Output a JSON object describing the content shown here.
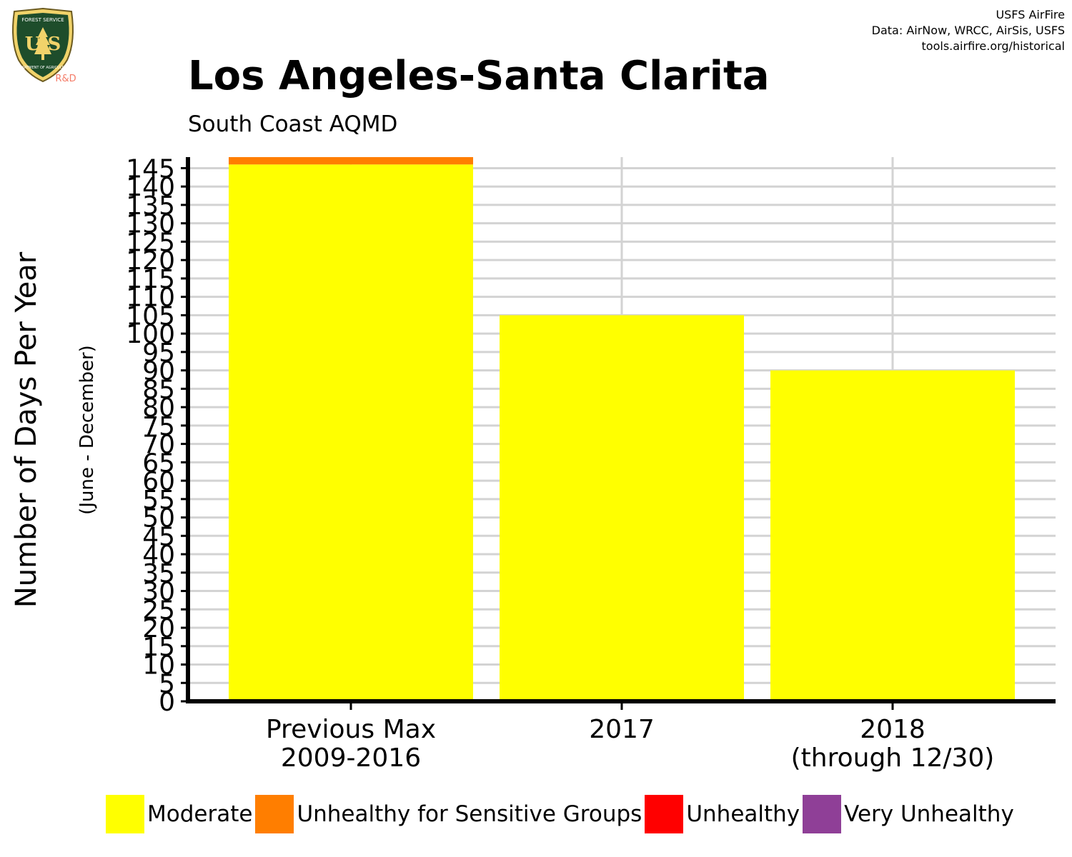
{
  "logo": {
    "top_text": "FOREST SERVICE",
    "letters": "U S",
    "bottom_text": "DEPARTMENT OF AGRICULTURE",
    "tag": "R&D"
  },
  "credits": {
    "line1": "USFS AirFire",
    "line2": "Data: AirNow, WRCC, AirSis, USFS",
    "line3": "tools.airfire.org/historical"
  },
  "title": "Los Angeles-Santa Clarita",
  "subtitle": "South Coast AQMD",
  "chart_data": {
    "type": "bar",
    "stacked": true,
    "title": "Los Angeles-Santa Clarita",
    "subtitle": "South Coast AQMD",
    "ylabel": "Number of Days Per Year",
    "ylabel_sub": "(June - December)",
    "xlabel": "",
    "ylim": [
      0,
      148
    ],
    "y_ticks": [
      0,
      5,
      10,
      15,
      20,
      25,
      30,
      35,
      40,
      45,
      50,
      55,
      60,
      65,
      70,
      75,
      80,
      85,
      90,
      95,
      100,
      105,
      110,
      115,
      120,
      125,
      130,
      135,
      140,
      145
    ],
    "categories": [
      [
        "Previous Max",
        "2009-2016"
      ],
      [
        "2017"
      ],
      [
        "2018",
        "(through 12/30)"
      ]
    ],
    "series": [
      {
        "name": "Moderate",
        "color": "#ffff00",
        "values": [
          146,
          105,
          90
        ]
      },
      {
        "name": "Unhealthy for Sensitive Groups",
        "color": "#ff7e00",
        "values": [
          2,
          0,
          0
        ]
      },
      {
        "name": "Unhealthy",
        "color": "#ff0000",
        "values": [
          0,
          0,
          0
        ]
      },
      {
        "name": "Very Unhealthy",
        "color": "#8f3f97",
        "values": [
          0,
          0,
          0
        ]
      }
    ],
    "grid": true,
    "legend_position": "bottom"
  }
}
